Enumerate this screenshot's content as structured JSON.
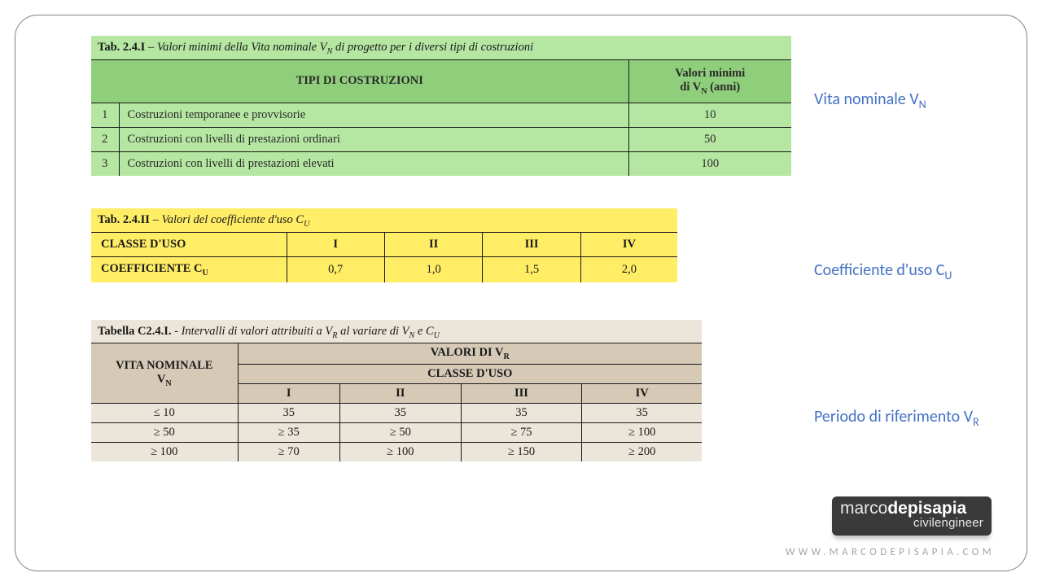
{
  "labels": {
    "vita_nominale": "Vita nominale V",
    "vita_nominale_sub": "N",
    "coefficiente": "Coefficiente d'uso C",
    "coefficiente_sub": "U",
    "periodo": "Periodo di riferimento V",
    "periodo_sub": "R"
  },
  "table1": {
    "caption_bold": "Tab. 2.4.I",
    "caption_rest": " – Valori minimi della Vita nominale V",
    "caption_sub": "N",
    "caption_tail": " di progetto per i diversi tipi di costruzioni",
    "col_tipi": "TIPI DI COSTRUZIONI",
    "col_val_l1": "Valori minimi",
    "col_val_l2a": "di V",
    "col_val_l2sub": "N",
    "col_val_l2b": " (anni)",
    "rows": [
      {
        "n": "1",
        "desc": "Costruzioni temporanee e provvisorie",
        "val": "10"
      },
      {
        "n": "2",
        "desc": "Costruzioni con livelli di prestazioni ordinari",
        "val": "50"
      },
      {
        "n": "3",
        "desc": "Costruzioni con livelli di prestazioni elevati",
        "val": "100"
      }
    ],
    "bg": "#b5e6a2",
    "header_bg": "#8fce7a"
  },
  "table2": {
    "caption_bold": "Tab. 2.4.II",
    "caption_rest": " – Valori del coefficiente d'uso C",
    "caption_sub": "U",
    "row1_label": "CLASSE D'USO",
    "row1": [
      "I",
      "II",
      "III",
      "IV"
    ],
    "row2_label_a": "COEFFICIENTE C",
    "row2_label_sub": "U",
    "row2": [
      "0,7",
      "1,0",
      "1,5",
      "2,0"
    ],
    "bg": "#ffed66"
  },
  "table3": {
    "caption_bold": "Tabella C2.4.I.",
    "caption_rest": " - Intervalli di valori attribuiti a V",
    "caption_sub1": "R",
    "caption_mid": " al variare di V",
    "caption_sub2": "N",
    "caption_mid2": " e C",
    "caption_sub3": "U",
    "corner_l1": "VITA NOMINALE",
    "corner_l2a": "V",
    "corner_l2sub": "N",
    "super_header_a": "VALORI DI V",
    "super_header_sub": "R",
    "sub_header": "CLASSE D'USO",
    "cols": [
      "I",
      "II",
      "III",
      "IV"
    ],
    "rows": [
      {
        "h": "≤ 10",
        "v": [
          "35",
          "35",
          "35",
          "35"
        ]
      },
      {
        "h": "≥ 50",
        "v": [
          "≥ 35",
          "≥ 50",
          "≥ 75",
          "≥ 100"
        ]
      },
      {
        "h": "≥ 100",
        "v": [
          "≥ 70",
          "≥ 100",
          "≥ 150",
          "≥ 200"
        ]
      }
    ],
    "bg": "#d6c9b6",
    "data_bg": "#ece5da"
  },
  "logo": {
    "part1": "marco",
    "part2": "depisapia",
    "line2": "civilengineer"
  },
  "url": "WWW.MARCODEPISAPIA.COM"
}
